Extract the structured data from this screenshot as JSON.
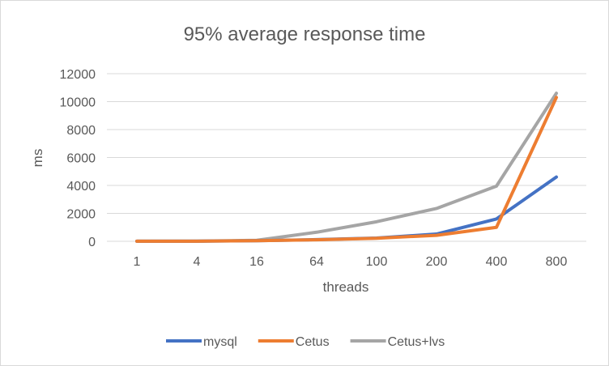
{
  "chart_data": {
    "type": "line",
    "title": "95% average response time",
    "xlabel": "threads",
    "ylabel": "ms",
    "categories": [
      "1",
      "4",
      "16",
      "64",
      "100",
      "200",
      "400",
      "800"
    ],
    "ylim": [
      0,
      12000
    ],
    "yticks": [
      "0",
      "2000",
      "4000",
      "6000",
      "8000",
      "10000",
      "12000"
    ],
    "grid": true,
    "legend_position": "bottom",
    "series": [
      {
        "name": "mysql",
        "color": "#4472c4",
        "values": [
          5,
          10,
          40,
          120,
          230,
          520,
          1600,
          4600
        ]
      },
      {
        "name": "Cetus",
        "color": "#ed7d31",
        "values": [
          5,
          10,
          40,
          110,
          220,
          430,
          1000,
          10300
        ]
      },
      {
        "name": "Cetus+lvs",
        "color": "#a5a5a5",
        "values": [
          5,
          15,
          70,
          650,
          1400,
          2350,
          3950,
          10600
        ]
      }
    ]
  }
}
